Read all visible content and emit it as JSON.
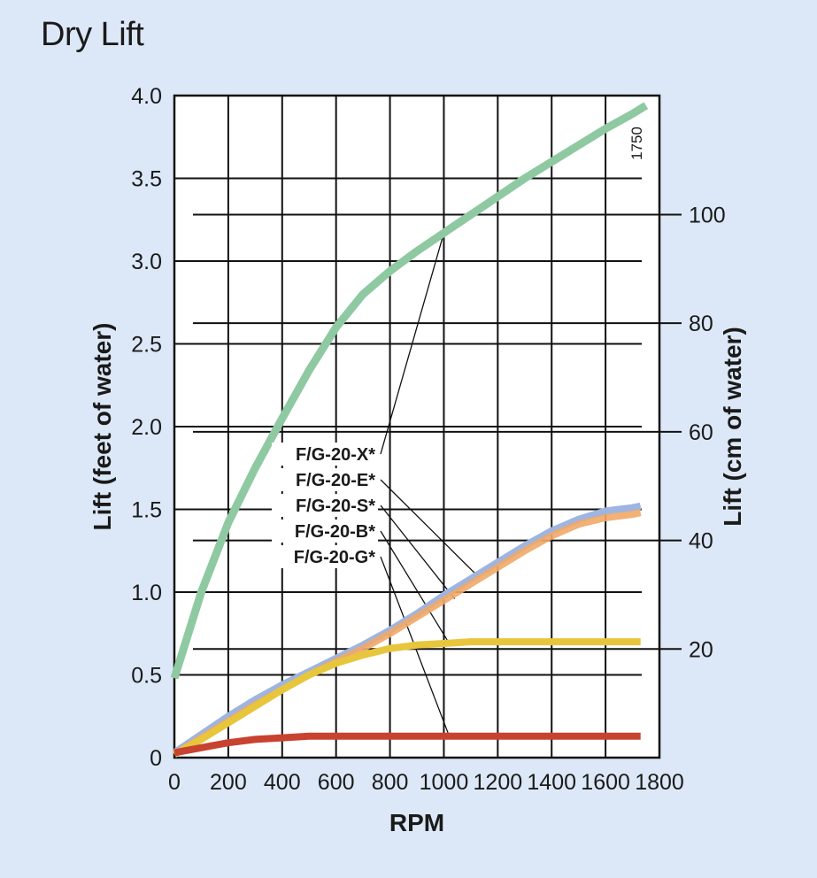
{
  "chart_data": {
    "type": "line",
    "title": "Dry Lift",
    "xlabel": "RPM",
    "ylabel": "Lift (feet of water)",
    "y2label": "Lift (cm of water)",
    "xlim": [
      0,
      1800
    ],
    "ylim": [
      0,
      4.0
    ],
    "y2lim": [
      0,
      121.92
    ],
    "x_ticks": [
      "0",
      "200",
      "400",
      "600",
      "800",
      "1000",
      "1200",
      "1400",
      "1600",
      "1800"
    ],
    "y_ticks": [
      "0",
      "0.5",
      "1.0",
      "1.5",
      "2.0",
      "2.5",
      "3.0",
      "3.5",
      "4.0"
    ],
    "y2_ticks": [
      "20",
      "40",
      "60",
      "80",
      "100"
    ],
    "grid": true,
    "annotation": "1750",
    "series": [
      {
        "name": "F/G-20-X*",
        "color": "#8ec9a2",
        "x": [
          0,
          100,
          200,
          300,
          400,
          500,
          600,
          700,
          800,
          900,
          1000,
          1100,
          1200,
          1300,
          1400,
          1500,
          1600,
          1700,
          1750
        ],
        "y": [
          0.48,
          1.0,
          1.42,
          1.75,
          2.05,
          2.34,
          2.6,
          2.8,
          2.94,
          3.06,
          3.17,
          3.28,
          3.39,
          3.5,
          3.6,
          3.7,
          3.8,
          3.89,
          3.94
        ]
      },
      {
        "name": "F/G-20-E*",
        "color": "#9db5e0",
        "x": [
          0,
          100,
          200,
          300,
          400,
          500,
          600,
          700,
          800,
          900,
          1000,
          1100,
          1200,
          1300,
          1400,
          1500,
          1600,
          1700,
          1730
        ],
        "y": [
          0.03,
          0.14,
          0.25,
          0.35,
          0.44,
          0.52,
          0.6,
          0.68,
          0.77,
          0.87,
          0.98,
          1.08,
          1.18,
          1.28,
          1.37,
          1.44,
          1.49,
          1.51,
          1.52
        ]
      },
      {
        "name": "F/G-20-S*",
        "color": "#f0a868",
        "x": [
          0,
          100,
          200,
          300,
          400,
          500,
          600,
          700,
          800,
          900,
          1000,
          1100,
          1200,
          1300,
          1400,
          1500,
          1600,
          1700,
          1730
        ],
        "y": [
          0.02,
          0.12,
          0.22,
          0.32,
          0.41,
          0.5,
          0.58,
          0.66,
          0.75,
          0.85,
          0.95,
          1.05,
          1.15,
          1.25,
          1.34,
          1.41,
          1.45,
          1.47,
          1.48
        ]
      },
      {
        "name": "F/G-20-B*",
        "color": "#e7c63c",
        "x": [
          0,
          100,
          200,
          300,
          400,
          500,
          600,
          700,
          800,
          900,
          1000,
          1100,
          1200,
          1400,
          1600,
          1730
        ],
        "y": [
          0.02,
          0.11,
          0.21,
          0.31,
          0.41,
          0.5,
          0.57,
          0.62,
          0.66,
          0.68,
          0.69,
          0.7,
          0.7,
          0.7,
          0.7,
          0.7
        ]
      },
      {
        "name": "F/G-20-G*",
        "color": "#c8432f",
        "x": [
          0,
          100,
          200,
          300,
          400,
          500,
          600,
          800,
          1000,
          1200,
          1400,
          1600,
          1730
        ],
        "y": [
          0.03,
          0.06,
          0.09,
          0.11,
          0.12,
          0.13,
          0.13,
          0.13,
          0.13,
          0.13,
          0.13,
          0.13,
          0.13
        ]
      }
    ]
  }
}
